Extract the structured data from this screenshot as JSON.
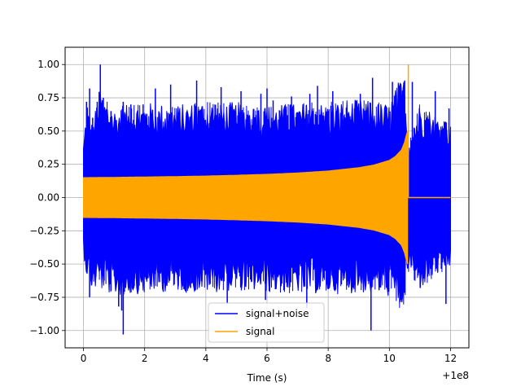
{
  "chart_data": {
    "type": "line",
    "title": "",
    "xlabel": "Time (s)",
    "ylabel": "",
    "x_offset_label": "+1e8",
    "xlim": [
      -0.6,
      12.6
    ],
    "ylim": [
      -1.13,
      1.13
    ],
    "x_ticks": [
      0,
      2,
      4,
      6,
      8,
      10,
      12
    ],
    "x_tick_labels": [
      "0",
      "2",
      "4",
      "6",
      "8",
      "10",
      "12"
    ],
    "y_ticks": [
      -1.0,
      -0.75,
      -0.5,
      -0.25,
      0.0,
      0.25,
      0.5,
      0.75,
      1.0
    ],
    "y_tick_labels": [
      "−1.00",
      "−0.75",
      "−0.50",
      "−0.25",
      "0.00",
      "0.25",
      "0.50",
      "0.75",
      "1.00"
    ],
    "grid": true,
    "legend_position": "bottom-center",
    "series": [
      {
        "name": "signal+noise",
        "color": "#0000ff",
        "x_range": [
          0,
          12
        ],
        "upper_envelope": {
          "x": [
            0,
            0.1,
            0.3,
            0.5,
            1,
            2,
            3,
            4,
            5,
            6,
            7,
            8,
            9,
            10,
            10.3,
            10.5,
            10.6,
            11,
            11.5,
            12
          ],
          "y": [
            0.42,
            0.72,
            0.55,
            0.82,
            0.68,
            0.72,
            0.7,
            0.73,
            0.72,
            0.7,
            0.71,
            0.72,
            0.74,
            0.71,
            0.88,
            0.91,
            0.42,
            0.72,
            0.64,
            0.55
          ]
        },
        "lower_envelope": {
          "x": [
            0,
            0.1,
            0.3,
            0.5,
            1,
            2,
            3,
            4,
            5,
            6,
            7,
            8,
            9,
            10,
            10.3,
            10.5,
            10.6,
            11,
            11.5,
            12
          ],
          "y": [
            -0.42,
            -0.6,
            -0.72,
            -0.68,
            -0.75,
            -0.72,
            -0.71,
            -0.72,
            -0.7,
            -0.72,
            -0.72,
            -0.73,
            -0.72,
            -0.75,
            -0.85,
            -0.8,
            -0.55,
            -0.7,
            -0.6,
            -0.55
          ]
        },
        "spikes": [
          {
            "x": 0.2,
            "y": -0.75
          },
          {
            "x": 0.95,
            "y": -0.4
          },
          {
            "x": 2.8,
            "y": -0.55
          },
          {
            "x": 0.1,
            "y": 0.72
          },
          {
            "x": 0.2,
            "y": 0.82
          },
          {
            "x": 0.3,
            "y": 0.6
          },
          {
            "x": 0.45,
            "y": 0.72
          },
          {
            "x": 0.65,
            "y": 0.75
          },
          {
            "x": 0.9,
            "y": 0.65
          },
          {
            "x": 1.3,
            "y": 0.72
          },
          {
            "x": 1.55,
            "y": 0.7
          },
          {
            "x": 1.95,
            "y": 0.7
          },
          {
            "x": 2.35,
            "y": 0.82
          },
          {
            "x": 2.85,
            "y": 0.85
          },
          {
            "x": 3.7,
            "y": 0.88
          },
          {
            "x": 4.5,
            "y": 0.83
          },
          {
            "x": 5.15,
            "y": 0.8
          },
          {
            "x": 5.8,
            "y": 0.78
          },
          {
            "x": 6.0,
            "y": 0.82
          },
          {
            "x": 6.2,
            "y": 0.73
          },
          {
            "x": 6.8,
            "y": 0.76
          },
          {
            "x": 7.4,
            "y": 0.78
          },
          {
            "x": 7.65,
            "y": 0.84
          },
          {
            "x": 8.15,
            "y": 0.8
          },
          {
            "x": 9.05,
            "y": 0.78
          },
          {
            "x": 9.45,
            "y": 0.9
          },
          {
            "x": 10.1,
            "y": 0.87
          },
          {
            "x": 10.5,
            "y": 0.88
          },
          {
            "x": 10.75,
            "y": 0.87
          },
          {
            "x": 11.5,
            "y": 0.8
          },
          {
            "x": 11.95,
            "y": 0.67
          },
          {
            "x": 11.85,
            "y": -0.8
          },
          {
            "x": 0.55,
            "y": 1.0
          },
          {
            "x": 1.15,
            "y": -0.82
          },
          {
            "x": 0.9,
            "y": -0.7
          },
          {
            "x": 9.4,
            "y": -1.0
          },
          {
            "x": 7.3,
            "y": -0.83
          },
          {
            "x": 5.95,
            "y": -0.77
          },
          {
            "x": 4.7,
            "y": -0.8
          },
          {
            "x": 1.3,
            "y": -1.03
          },
          {
            "x": 1.25,
            "y": -0.85
          },
          {
            "x": 10.45,
            "y": -0.7
          },
          {
            "x": 3.5,
            "y": -0.68
          }
        ]
      },
      {
        "name": "signal",
        "color": "#ffa500",
        "x_range": [
          0,
          10.6
        ],
        "envelope": {
          "x": [
            0,
            1,
            2,
            3,
            4,
            5,
            6,
            7,
            8,
            9,
            9.5,
            10,
            10.2,
            10.4,
            10.5,
            10.55,
            10.6
          ],
          "y": [
            0.15,
            0.152,
            0.155,
            0.158,
            0.162,
            0.168,
            0.175,
            0.185,
            0.2,
            0.225,
            0.245,
            0.28,
            0.31,
            0.36,
            0.42,
            0.47,
            0.5
          ]
        },
        "final_spike": {
          "x": 10.62,
          "y": 1.0
        },
        "flat_after": {
          "x": [
            10.62,
            12
          ],
          "y": 0.0
        }
      }
    ]
  }
}
